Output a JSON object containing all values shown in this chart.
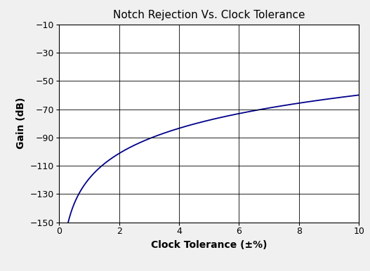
{
  "title": "Notch Rejection Vs. Clock Tolerance",
  "xlabel": "Clock Tolerance (±%)",
  "ylabel": "Gain (dB)",
  "xlim": [
    0,
    10
  ],
  "ylim": [
    -150,
    -10
  ],
  "yticks": [
    -150,
    -130,
    -110,
    -90,
    -70,
    -50,
    -30,
    -10
  ],
  "xticks": [
    0,
    2,
    4,
    6,
    8,
    10
  ],
  "line_color": "#00008B",
  "line_width": 1.3,
  "x_start": 0.27,
  "x_end": 10.0,
  "curve_A": 59.1,
  "curve_B": -119.1,
  "background_color": "#ffffff",
  "outer_bg": "#f0f0f0",
  "grid_color": "#000000",
  "title_fontsize": 11,
  "label_fontsize": 10,
  "tick_fontsize": 9
}
